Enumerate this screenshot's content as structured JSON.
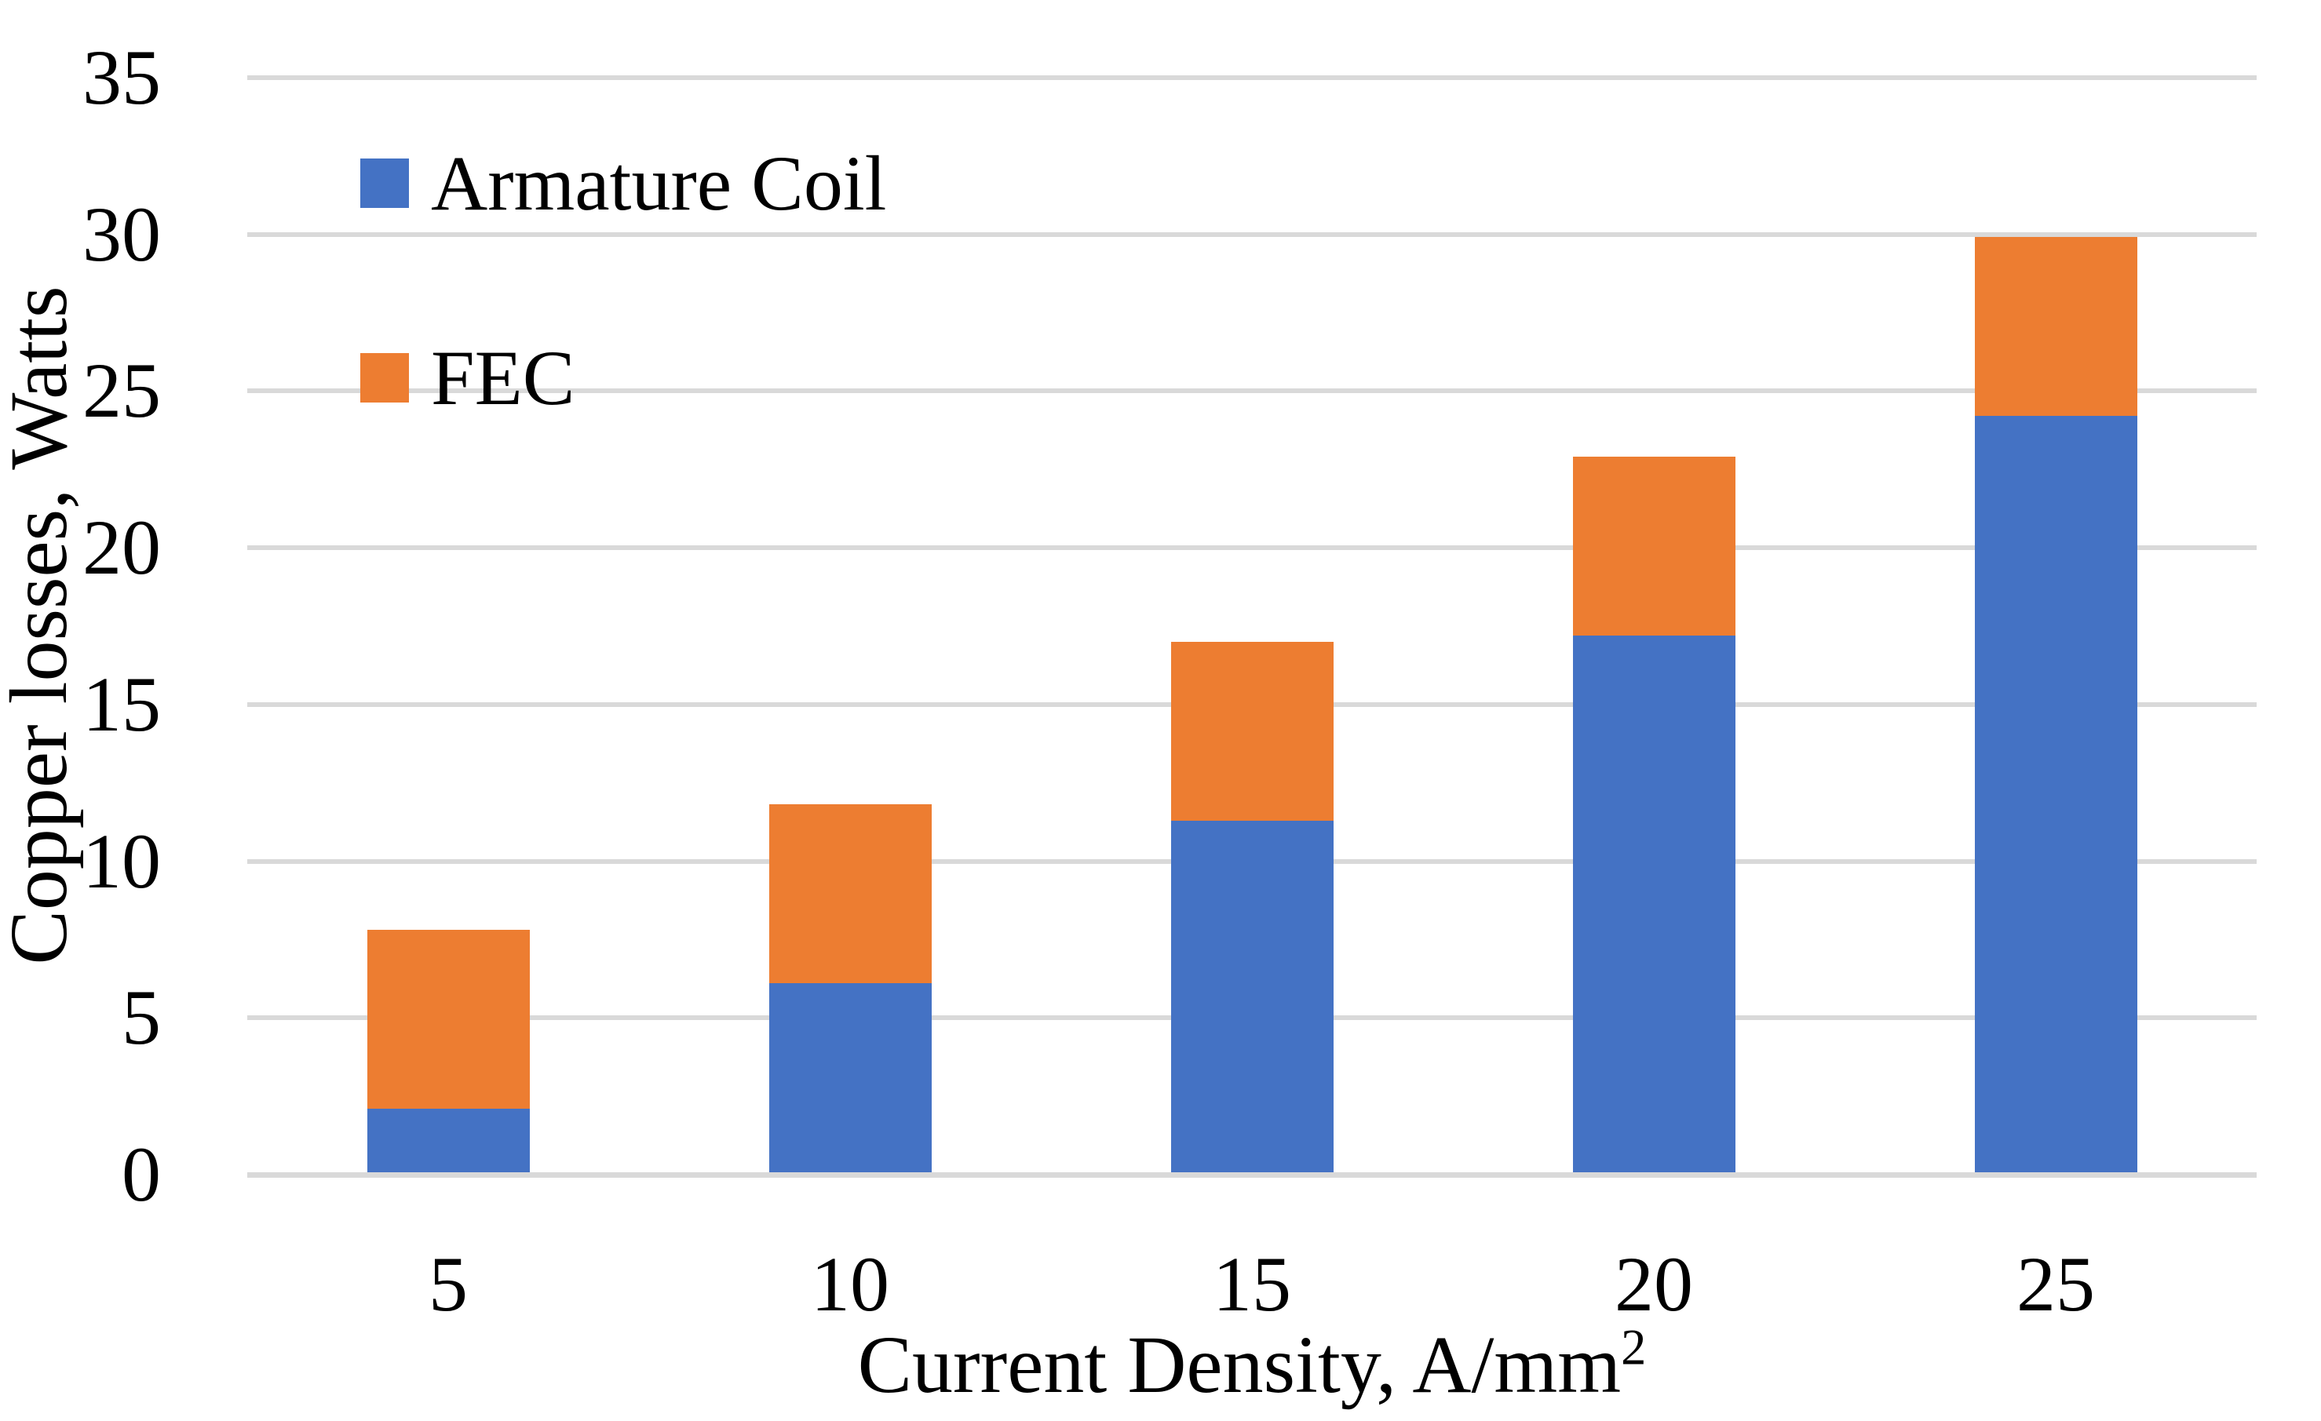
{
  "chart_data": {
    "type": "bar",
    "stacked": true,
    "title": "",
    "categories": [
      "5",
      "10",
      "15",
      "20",
      "25"
    ],
    "series": [
      {
        "name": "Armature Coil",
        "color": "#4472C4",
        "values": [
          2.1,
          6.1,
          11.3,
          17.2,
          24.2
        ]
      },
      {
        "name": "FEC",
        "color": "#ED7D31",
        "values": [
          5.7,
          5.7,
          5.7,
          5.7,
          5.7
        ]
      }
    ],
    "stack_totals": [
      7.8,
      11.8,
      17.0,
      22.9,
      29.9
    ],
    "xlabel": "Current Density, A/mm²",
    "xlabel_base": "Current Density, A/mm",
    "xlabel_superscript": "2",
    "ylabel": "Copper losses, Watts",
    "y_ticks": [
      0,
      5,
      10,
      15,
      20,
      25,
      30,
      35
    ],
    "ylim": [
      0,
      35
    ],
    "grid": "horizontal",
    "gridline_color": "#D9D9D9",
    "axis_line_color": "#D9D9D9",
    "text_color": "#000000",
    "background_color": "#FFFFFF",
    "legend_position": "top-left-inside"
  }
}
